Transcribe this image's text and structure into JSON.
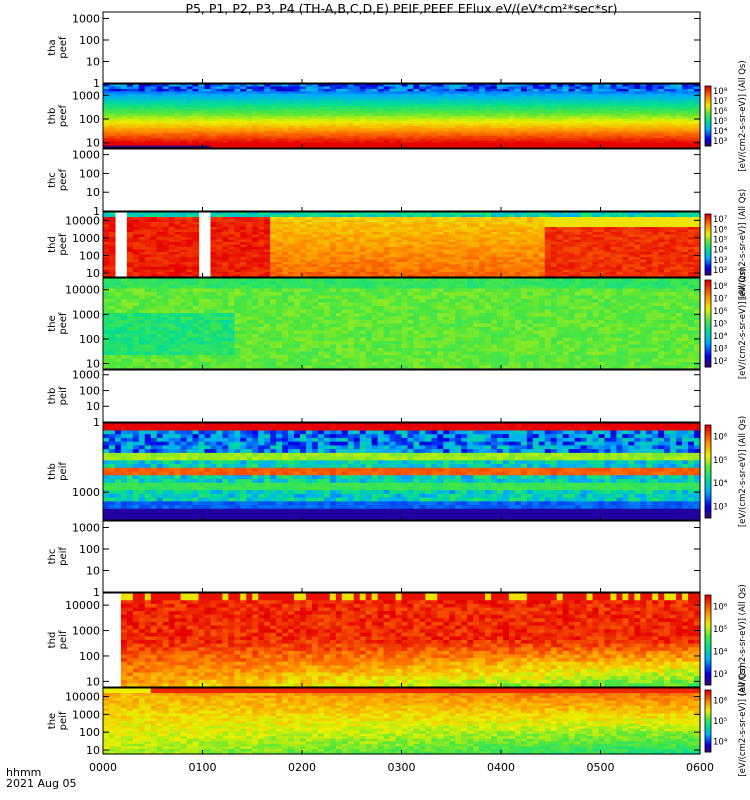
{
  "title": "P5, P1, P2, P3, P4 (TH-A,B,C,D,E) PEIF,PEEF EFlux eV/(eV*cm²*sec*sr)",
  "x_header": {
    "line1": "hhmm",
    "line2": "2021 Aug 05"
  },
  "chart_data": {
    "type": "heatmap",
    "x_label": "hhmm",
    "x_ticks": [
      "0000",
      "0100",
      "0200",
      "0300",
      "0400",
      "0500",
      "0600"
    ],
    "x_range_hours": [
      0,
      6
    ],
    "panels": [
      {
        "id": "tha-peef",
        "label": [
          "tha",
          "peef"
        ],
        "y_ticks": [
          "1",
          "10",
          "100",
          "1000"
        ],
        "y_range": [
          1,
          2000
        ],
        "has_data": false,
        "colorbar": null
      },
      {
        "id": "thb-peef",
        "label": [
          "thb",
          "peef"
        ],
        "y_ticks": [
          "10",
          "100",
          "1000"
        ],
        "y_range": [
          6,
          3000
        ],
        "has_data": true,
        "colorbar": {
          "ticks": [
            "10³",
            "10⁴",
            "10⁵",
            "10⁶",
            "10⁷",
            "10⁸"
          ],
          "label": "[eV/(cm2-s-sr-eV)] (All Qs)"
        }
      },
      {
        "id": "thc-peef",
        "label": [
          "thc",
          "peef"
        ],
        "y_ticks": [
          "1",
          "10",
          "100",
          "1000"
        ],
        "y_range": [
          1,
          2000
        ],
        "has_data": false,
        "colorbar": null
      },
      {
        "id": "thd-peef",
        "label": [
          "thd",
          "peef"
        ],
        "y_ticks": [
          "10",
          "100",
          "1000",
          "10000"
        ],
        "y_range": [
          6,
          30000
        ],
        "has_data": true,
        "colorbar": {
          "ticks": [
            "10²",
            "10³",
            "10⁴",
            "10⁵",
            "10⁶",
            "10⁷"
          ],
          "label": "[eV/(cm2-s-sr-eV)] (All Qs)"
        }
      },
      {
        "id": "the-peef",
        "label": [
          "the",
          "peef"
        ],
        "y_ticks": [
          "10",
          "100",
          "1000",
          "10000"
        ],
        "y_range": [
          6,
          30000
        ],
        "has_data": true,
        "colorbar": {
          "ticks": [
            "10²",
            "10³",
            "10⁴",
            "10⁵",
            "10⁶",
            "10⁷",
            "10⁸"
          ],
          "label": "[eV/(cm2-s-sr-eV)] (All Qs)"
        }
      },
      {
        "id": "thb-peif-top",
        "label": [
          "thb",
          "peif"
        ],
        "y_ticks": [
          "1",
          "10",
          "100",
          "1000"
        ],
        "y_range": [
          1,
          2000
        ],
        "has_data": false,
        "colorbar": null
      },
      {
        "id": "thb-peif",
        "label": [
          "thb",
          "peif"
        ],
        "y_ticks": [
          "1000"
        ],
        "y_range": [
          300,
          20000
        ],
        "has_data": true,
        "colorbar": {
          "ticks": [
            "10³",
            "10⁴",
            "10⁵",
            "10⁶"
          ],
          "label": "[eV/(cm2-s-sr-eV)] (All Qs)"
        }
      },
      {
        "id": "thc-peif",
        "label": [
          "thc",
          "peif"
        ],
        "y_ticks": [
          "1",
          "10",
          "100",
          "1000"
        ],
        "y_range": [
          1,
          2000
        ],
        "has_data": false,
        "colorbar": null
      },
      {
        "id": "thd-peif",
        "label": [
          "thd",
          "peif"
        ],
        "y_ticks": [
          "10",
          "100",
          "1000",
          "10000"
        ],
        "y_range": [
          6,
          30000
        ],
        "has_data": true,
        "colorbar": {
          "ticks": [
            "10³",
            "10⁴",
            "10⁵",
            "10⁶"
          ],
          "label": "[eV/(cm2-s-sr-eV)] (All Qs)"
        }
      },
      {
        "id": "the-peif",
        "label": [
          "the",
          "peif"
        ],
        "y_ticks": [
          "10",
          "100",
          "1000",
          "10000"
        ],
        "y_range": [
          6,
          30000
        ],
        "has_data": true,
        "colorbar": {
          "ticks": [
            "10⁴",
            "10⁵",
            "10⁶"
          ],
          "label": "[eV/(cm2-s-sr-eV)] (All Qs)"
        }
      }
    ]
  }
}
